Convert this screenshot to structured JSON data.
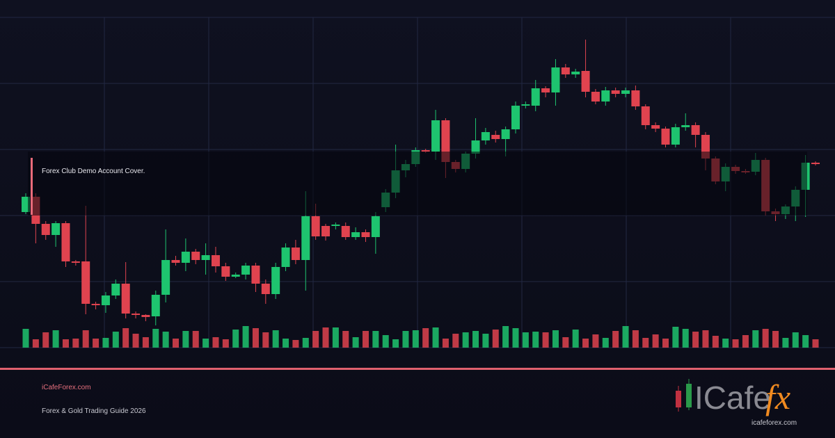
{
  "chart_data": {
    "type": "candlestick",
    "ylim": [
      130,
      605
    ],
    "vlim": [
      0,
      60
    ],
    "up_color": "#1ec46f",
    "down_color": "#e0434f",
    "open": [
      325,
      347,
      308,
      292,
      309,
      254,
      254,
      193,
      191,
      205,
      222,
      179,
      177,
      175,
      206,
      256,
      252,
      268,
      256,
      263,
      247,
      232,
      235,
      248,
      222,
      207,
      246,
      274,
      256,
      319,
      305,
      305,
      305,
      289,
      296,
      289,
      332,
      353,
      385,
      394,
      414,
      412,
      457,
      397,
      387,
      409,
      428,
      436,
      430,
      444,
      478,
      478,
      503,
      497,
      533,
      523,
      528,
      498,
      484,
      500,
      495,
      500,
      477,
      450,
      445,
      422,
      447,
      450,
      436,
      402,
      369,
      390,
      384,
      383,
      400,
      326,
      322,
      333,
      357,
      396
    ],
    "high": [
      352,
      352,
      312,
      312,
      312,
      256,
      334,
      196,
      210,
      228,
      253,
      182,
      178,
      212,
      300,
      262,
      287,
      272,
      280,
      275,
      252,
      238,
      252,
      252,
      228,
      252,
      280,
      285,
      355,
      337,
      308,
      310,
      310,
      303,
      300,
      325,
      358,
      422,
      400,
      418,
      416,
      472,
      460,
      400,
      412,
      460,
      446,
      442,
      448,
      484,
      484,
      515,
      506,
      545,
      538,
      531,
      573,
      502,
      505,
      504,
      504,
      507,
      480,
      454,
      448,
      452,
      467,
      454,
      440,
      405,
      395,
      393,
      387,
      410,
      403,
      330,
      336,
      362,
      407,
      398
    ],
    "low": [
      322,
      280,
      285,
      275,
      246,
      248,
      178,
      185,
      180,
      200,
      172,
      172,
      168,
      162,
      195,
      248,
      240,
      250,
      235,
      238,
      226,
      230,
      228,
      210,
      193,
      200,
      240,
      250,
      212,
      285,
      284,
      300,
      285,
      285,
      282,
      265,
      325,
      345,
      375,
      390,
      410,
      400,
      374,
      382,
      382,
      402,
      422,
      425,
      405,
      438,
      474,
      470,
      490,
      478,
      518,
      518,
      490,
      480,
      478,
      490,
      490,
      472,
      444,
      440,
      418,
      418,
      442,
      418,
      385,
      365,
      355,
      380,
      380,
      378,
      320,
      312,
      315,
      312,
      318,
      392
    ],
    "close": [
      347,
      308,
      292,
      309,
      254,
      252,
      193,
      191,
      205,
      222,
      179,
      177,
      174,
      206,
      256,
      252,
      268,
      256,
      263,
      247,
      232,
      235,
      248,
      222,
      207,
      246,
      274,
      256,
      319,
      290,
      290,
      307,
      289,
      296,
      289,
      319,
      353,
      385,
      394,
      414,
      413,
      457,
      397,
      387,
      409,
      428,
      440,
      430,
      444,
      478,
      480,
      503,
      497,
      533,
      523,
      527,
      498,
      484,
      500,
      495,
      500,
      477,
      450,
      445,
      422,
      447,
      450,
      436,
      402,
      369,
      390,
      384,
      383,
      400,
      326,
      322,
      333,
      357,
      396,
      395
    ],
    "volume": [
      27,
      12,
      22,
      25,
      12,
      13,
      25,
      13,
      14,
      23,
      28,
      20,
      15,
      27,
      23,
      13,
      24,
      24,
      13,
      15,
      12,
      26,
      31,
      28,
      22,
      25,
      13,
      11,
      14,
      24,
      29,
      29,
      24,
      15,
      24,
      24,
      18,
      12,
      24,
      25,
      28,
      29,
      13,
      20,
      22,
      24,
      20,
      26,
      31,
      28,
      22,
      23,
      22,
      25,
      15,
      26,
      13,
      19,
      14,
      24,
      31,
      25,
      14,
      19,
      13,
      30,
      27,
      23,
      25,
      17,
      13,
      12,
      18,
      25,
      27,
      24,
      14,
      22,
      18,
      12
    ]
  },
  "cover": {
    "caption": "Forex Club Demo Account Cover.",
    "site": "iCafeForex.com",
    "subtitle": "Forex & Gold Trading Guide 2026",
    "logo": {
      "word": "ICafe",
      "accent": "fx",
      "url": "icafeforex.com"
    }
  }
}
